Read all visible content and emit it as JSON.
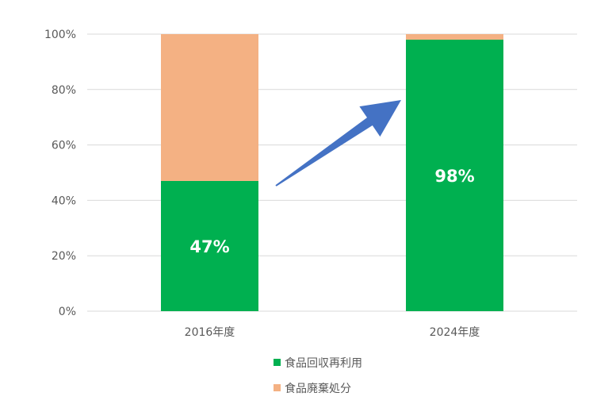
{
  "chart_data": {
    "type": "bar",
    "stacked": true,
    "categories": [
      "2016年度",
      "2024年度"
    ],
    "series": [
      {
        "name": "食品回収再利用",
        "values": [
          47,
          98
        ],
        "color": "#00b050"
      },
      {
        "name": "食品廃棄処分",
        "values": [
          53,
          2
        ],
        "color": "#f4b183"
      }
    ],
    "data_labels": [
      "47%",
      "98%"
    ],
    "y_ticks": [
      "0%",
      "20%",
      "40%",
      "60%",
      "80%",
      "100%"
    ],
    "ylim": [
      0,
      100
    ],
    "grid": true,
    "legend_position": "bottom",
    "annotation": {
      "shape": "arrow",
      "from": "2016年度",
      "to": "2024年度",
      "color": "#4472c4"
    }
  }
}
